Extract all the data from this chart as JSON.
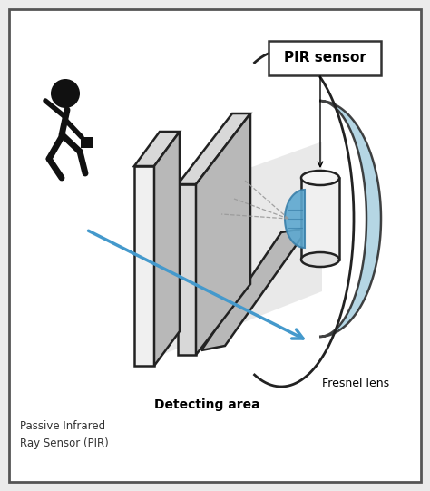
{
  "bg_color": "#ebebeb",
  "border_color": "#555555",
  "title": "Passive Infrared\nRay Sensor (PIR)",
  "pir_label": "PIR sensor",
  "fresnel_label": "Fresnel lens",
  "detect_label": "Detecting area",
  "panel_front_fill": "#f0f0f0",
  "panel_top_fill": "#d8d8d8",
  "panel_side_fill": "#b8b8b8",
  "panel_edge": "#222222",
  "sensor_blue_light": "#a8cfe0",
  "sensor_blue": "#5da8d0",
  "sensor_blue_dark": "#3a80aa",
  "arrow_blue": "#4499cc",
  "figure_color": "#111111",
  "white": "#ffffff"
}
